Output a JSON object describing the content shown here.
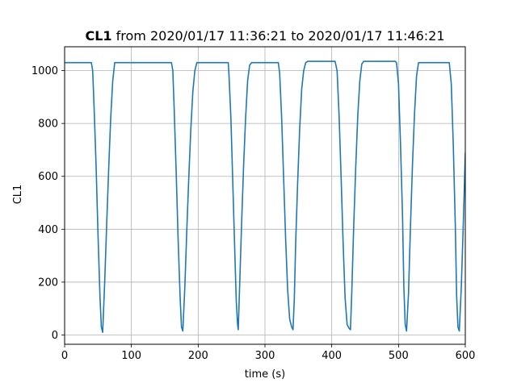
{
  "chart_data": {
    "type": "line",
    "title_bold": "CL1",
    "title_rest": " from 2020/01/17 11:36:21 to 2020/01/17 11:46:21",
    "xlabel": "time (s)",
    "ylabel": "CL1",
    "xlim": [
      0,
      600
    ],
    "ylim": [
      -35,
      1090
    ],
    "x_ticks": [
      0,
      100,
      200,
      300,
      400,
      500,
      600
    ],
    "y_ticks": [
      0,
      200,
      400,
      600,
      800,
      1000
    ],
    "grid": true,
    "line_color": "#1f77b4",
    "series": [
      {
        "x": [
          0,
          40,
          42,
          44,
          47,
          50,
          53,
          55,
          57,
          60,
          63,
          66,
          69,
          72,
          75,
          100,
          130,
          160,
          162,
          164,
          167,
          170,
          173,
          175,
          177,
          180,
          183,
          186,
          189,
          192,
          195,
          198,
          200,
          230,
          245,
          246,
          249,
          252,
          255,
          257,
          259,
          260,
          262,
          265,
          268,
          271,
          274,
          277,
          280,
          300,
          320,
          322,
          325,
          328,
          331,
          334,
          337,
          340,
          342,
          344,
          346,
          349,
          352,
          355,
          358,
          361,
          364,
          380,
          405,
          408,
          411,
          414,
          417,
          420,
          423,
          426,
          428,
          430,
          433,
          436,
          439,
          442,
          445,
          448,
          470,
          495,
          497,
          500,
          503,
          506,
          508,
          510,
          512,
          515,
          518,
          521,
          524,
          527,
          530,
          555,
          574,
          576,
          579,
          582,
          585,
          587,
          589,
          591,
          594,
          597,
          600
        ],
        "y": [
          1030,
          1030,
          1000,
          870,
          650,
          380,
          140,
          30,
          10,
          200,
          420,
          630,
          820,
          960,
          1030,
          1030,
          1030,
          1030,
          1000,
          860,
          620,
          360,
          140,
          30,
          15,
          180,
          400,
          600,
          780,
          920,
          1000,
          1030,
          1030,
          1030,
          1030,
          990,
          820,
          560,
          300,
          130,
          40,
          20,
          180,
          420,
          640,
          820,
          960,
          1020,
          1030,
          1030,
          1030,
          990,
          820,
          590,
          360,
          170,
          60,
          30,
          20,
          140,
          350,
          580,
          780,
          930,
          1000,
          1030,
          1035,
          1035,
          1035,
          1000,
          830,
          600,
          350,
          140,
          40,
          25,
          20,
          160,
          420,
          640,
          830,
          960,
          1025,
          1035,
          1035,
          1035,
          1030,
          950,
          720,
          450,
          180,
          40,
          15,
          160,
          420,
          650,
          840,
          980,
          1030,
          1030,
          1030,
          1030,
          950,
          720,
          420,
          150,
          30,
          15,
          180,
          420,
          690
        ]
      }
    ]
  }
}
